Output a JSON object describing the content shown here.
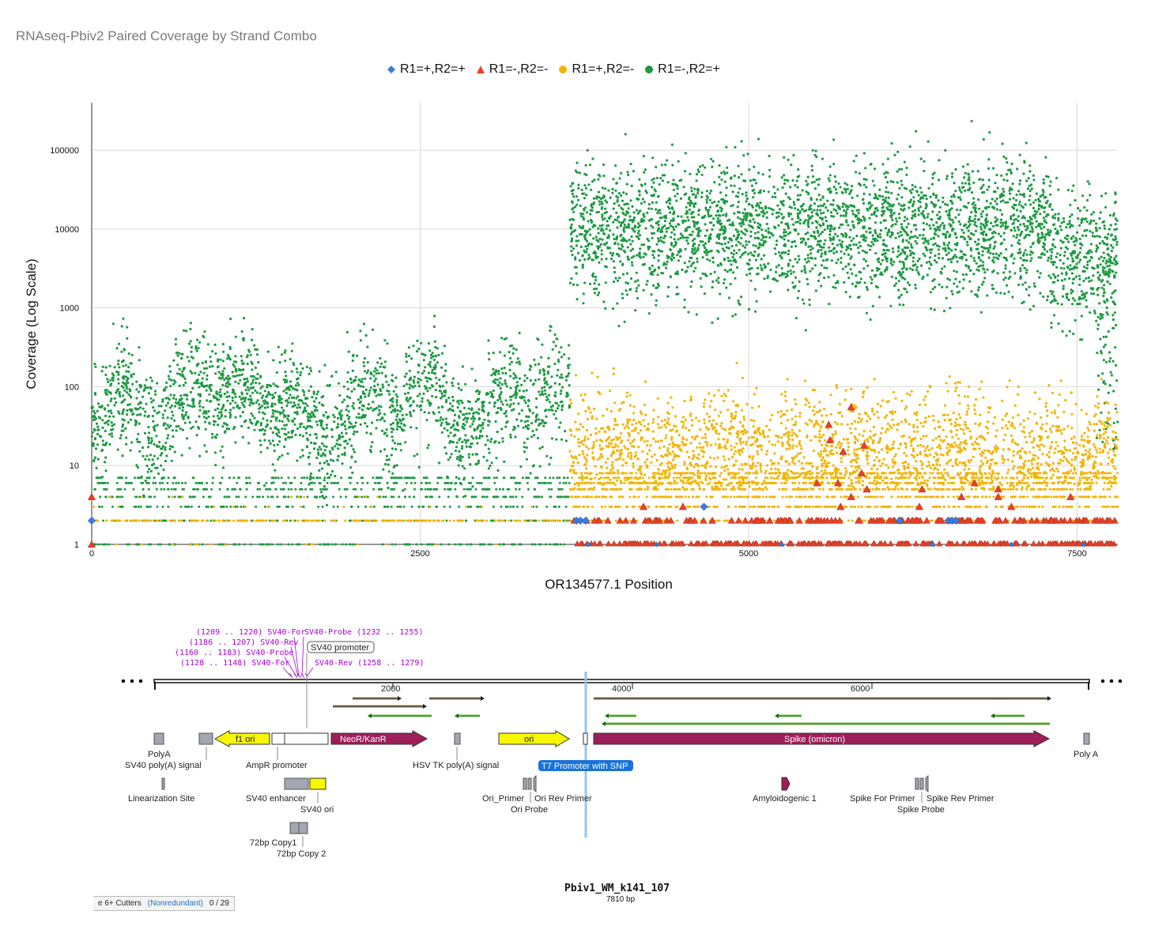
{
  "chart_data": {
    "type": "scatter",
    "title": "RNAseq-Pbiv2 Paired Coverage by Strand Combo",
    "xlabel": "OR134577.1 Position",
    "ylabel": "Coverage (Log Scale)",
    "yscale": "log",
    "xlim": [
      0,
      7810
    ],
    "ylim": [
      1,
      400000
    ],
    "x_ticks": [
      0,
      2500,
      5000,
      7500
    ],
    "y_ticks": [
      1,
      10,
      100,
      1000,
      10000,
      100000
    ],
    "grid": true,
    "legend_position": "top-center",
    "series": [
      {
        "name": "R1=+,R2=+",
        "marker": "diamond",
        "color": "#3a7ee0",
        "points": [
          [
            0,
            2
          ],
          [
            4660,
            3
          ],
          [
            3690,
            2
          ],
          [
            3720,
            2
          ],
          [
            3760,
            2
          ],
          [
            6150,
            2
          ],
          [
            6520,
            2
          ],
          [
            6550,
            2
          ],
          [
            6580,
            2
          ],
          [
            3780,
            1
          ],
          [
            4300,
            1
          ],
          [
            5250,
            1
          ],
          [
            6400,
            1
          ],
          [
            7000,
            1
          ],
          [
            7550,
            1
          ]
        ]
      },
      {
        "name": "R1=-,R2=-",
        "marker": "triangle",
        "color": "#e8402a",
        "band_x": [
          3640,
          7810
        ],
        "band_levels": [
          1,
          2
        ],
        "points": [
          [
            0,
            4
          ],
          [
            0,
            1
          ],
          [
            5610,
            33
          ],
          [
            5780,
            55
          ],
          [
            5620,
            21
          ],
          [
            5720,
            15
          ],
          [
            5880,
            18
          ],
          [
            5860,
            8
          ],
          [
            5680,
            6
          ],
          [
            5520,
            6
          ],
          [
            5780,
            4
          ],
          [
            6320,
            5
          ],
          [
            6720,
            6
          ],
          [
            6620,
            4
          ],
          [
            6900,
            5
          ],
          [
            7000,
            3
          ],
          [
            7450,
            4
          ],
          [
            4200,
            3
          ],
          [
            4500,
            3
          ],
          [
            5700,
            3
          ],
          [
            5900,
            5
          ],
          [
            6300,
            3
          ],
          [
            6900,
            4
          ]
        ]
      },
      {
        "name": "R1=+,R2=-",
        "marker": "circle",
        "color": "#f4b400",
        "density": "right-heavy"
      },
      {
        "name": "R1=-,R2=+",
        "marker": "circle",
        "color": "#1e9a43",
        "density": "full"
      }
    ]
  },
  "map": {
    "title": "Pbiv1_WM_k141_107",
    "length": "7810 bp",
    "ruler_ticks": [
      "2000",
      "4000",
      "6000"
    ],
    "features": {
      "f1_ori": "f1 ori",
      "neor": "NeoR/KanR",
      "ori": "ori",
      "spike": "Spike (omicron)",
      "sv40_promoter": "SV40 promoter"
    },
    "labels": {
      "polya": "PolyA",
      "sv40_polya": "SV40 poly(A) signal",
      "ampr_promoter": "AmpR promoter",
      "hsv_tk": "HSV TK poly(A) signal",
      "t7": "T7 Promoter with SNP",
      "poly_a": "Poly A",
      "linearization": "Linearization Site",
      "sv40_enhancer": "SV40 enhancer",
      "sv40_ori": "SV40 ori",
      "ori_primer": "Ori_Primer",
      "ori_rev_primer": "Ori Rev Primer",
      "ori_probe": "Ori Probe",
      "amyloidogenic": "Amyloidogenic 1",
      "spike_for_primer": "Spike For Primer",
      "spike_rev_primer": "Spike Rev Primer",
      "spike_probe": "Spike Probe",
      "copy1": "72bp Copy1",
      "copy2": "72bp Copy 2"
    },
    "primers": [
      "(1209 .. 1220)  SV40-For",
      "(1186 .. 1207)  SV40-Rev",
      "(1160 .. 1183)  SV40-Probe",
      "(1128 .. 1148)  SV40-For",
      "SV40-Probe  (1232 .. 1255)",
      "SV40-Rev  (1258 .. 1279)"
    ],
    "cutters": {
      "label": "e 6+ Cutters",
      "mode": "(Nonredundant)",
      "count": "0 / 29"
    }
  },
  "colors": {
    "blue": "#3a7ee0",
    "red": "#e8402a",
    "yellow": "#f4b400",
    "green": "#1e9a43",
    "spike": "#9c1e5a",
    "feature_yellow": "#f7f700",
    "grey_feature": "#a3a7b0",
    "t7_badge": "#1a73d9"
  }
}
